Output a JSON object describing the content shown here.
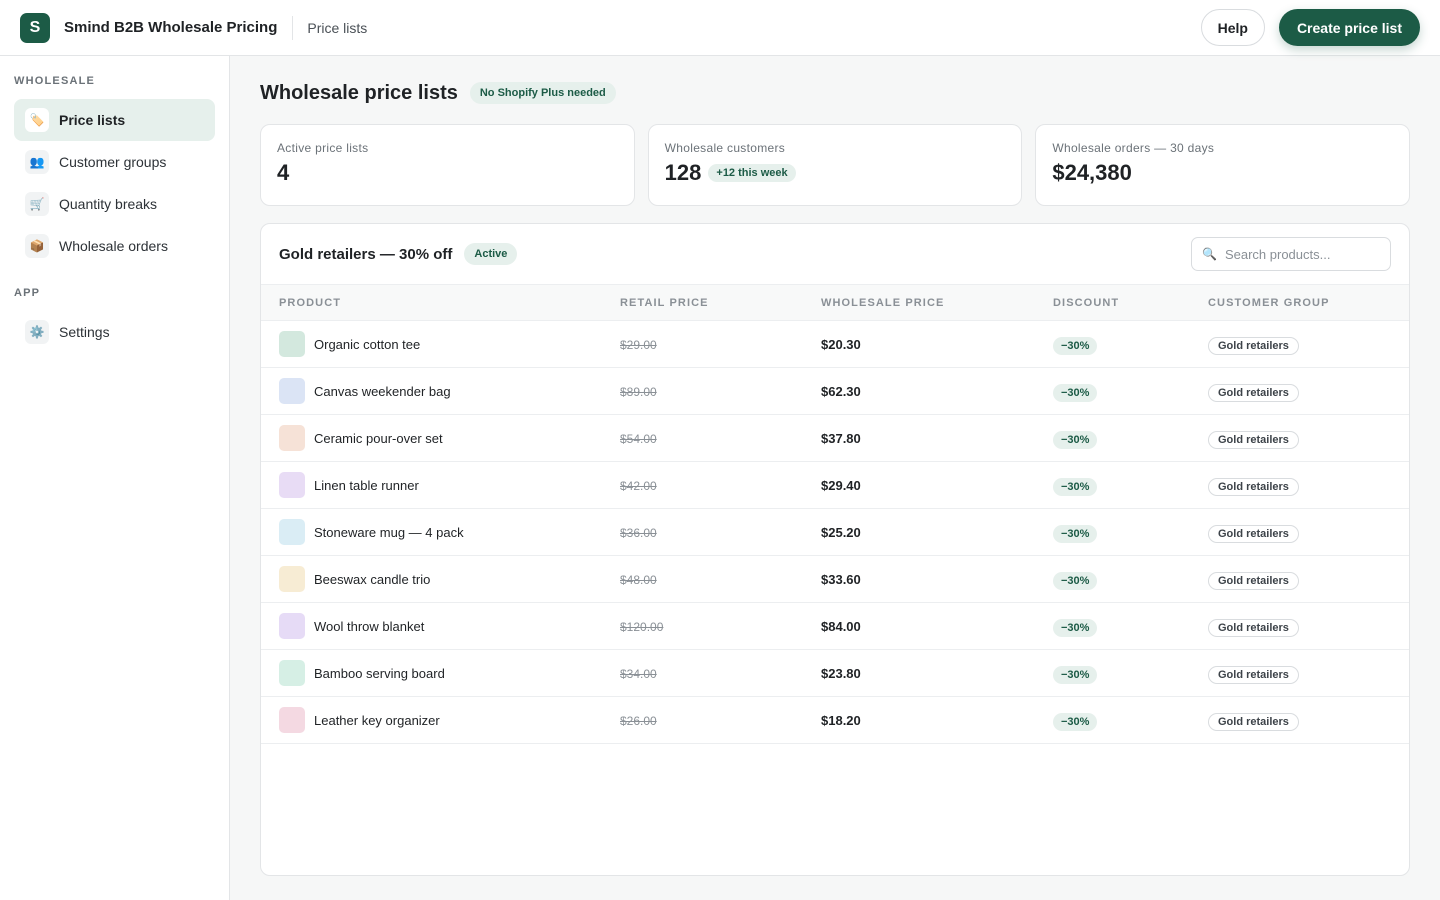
{
  "app": {
    "logo_letter": "S",
    "title": "Smind B2B Wholesale Pricing",
    "breadcrumb": "Price lists",
    "help_label": "Help",
    "create_label": "Create price list"
  },
  "sidebar": {
    "sections": [
      {
        "heading": "WHOLESALE",
        "items": [
          {
            "label": "Price lists",
            "icon": "🏷️",
            "icon_name": "tag-icon",
            "active": true
          },
          {
            "label": "Customer groups",
            "icon": "👥",
            "icon_name": "users-icon",
            "active": false
          },
          {
            "label": "Quantity breaks",
            "icon": "🛒",
            "icon_name": "cart-icon",
            "active": false
          },
          {
            "label": "Wholesale orders",
            "icon": "📦",
            "icon_name": "package-icon",
            "active": false
          }
        ]
      },
      {
        "heading": "APP",
        "items": [
          {
            "label": "Settings",
            "icon": "⚙️",
            "icon_name": "gear-icon",
            "active": false
          }
        ]
      }
    ]
  },
  "page": {
    "title": "Wholesale price lists",
    "badge": "No Shopify Plus needed"
  },
  "stats": [
    {
      "label": "Active price lists",
      "value": "4",
      "badge": ""
    },
    {
      "label": "Wholesale customers",
      "value": "128",
      "badge": "+12 this week"
    },
    {
      "label": "Wholesale orders — 30 days",
      "value": "$24,380",
      "badge": ""
    }
  ],
  "price_list": {
    "title": "Gold retailers — 30% off",
    "status": "Active",
    "search_placeholder": "Search products...",
    "search_icon": "🔍",
    "columns": [
      "PRODUCT",
      "RETAIL PRICE",
      "WHOLESALE PRICE",
      "DISCOUNT",
      "CUSTOMER GROUP"
    ],
    "rows": [
      {
        "product": "Organic cotton tee",
        "retail": "$29.00",
        "wholesale": "$20.30",
        "discount": "−30%",
        "group": "Gold retailers",
        "swatch": "#d3e8de"
      },
      {
        "product": "Canvas weekender bag",
        "retail": "$89.00",
        "wholesale": "$62.30",
        "discount": "−30%",
        "group": "Gold retailers",
        "swatch": "#dbe4f5"
      },
      {
        "product": "Ceramic pour-over set",
        "retail": "$54.00",
        "wholesale": "$37.80",
        "discount": "−30%",
        "group": "Gold retailers",
        "swatch": "#f6e2d7"
      },
      {
        "product": "Linen table runner",
        "retail": "$42.00",
        "wholesale": "$29.40",
        "discount": "−30%",
        "group": "Gold retailers",
        "swatch": "#e8dcf5"
      },
      {
        "product": "Stoneware mug — 4 pack",
        "retail": "$36.00",
        "wholesale": "$25.20",
        "discount": "−30%",
        "group": "Gold retailers",
        "swatch": "#daedf5"
      },
      {
        "product": "Beeswax candle trio",
        "retail": "$48.00",
        "wholesale": "$33.60",
        "discount": "−30%",
        "group": "Gold retailers",
        "swatch": "#f7ecd4"
      },
      {
        "product": "Wool throw blanket",
        "retail": "$120.00",
        "wholesale": "$84.00",
        "discount": "−30%",
        "group": "Gold retailers",
        "swatch": "#e6dbf6"
      },
      {
        "product": "Bamboo serving board",
        "retail": "$34.00",
        "wholesale": "$23.80",
        "discount": "−30%",
        "group": "Gold retailers",
        "swatch": "#d6efe5"
      },
      {
        "product": "Leather key organizer",
        "retail": "$26.00",
        "wholesale": "$18.20",
        "discount": "−30%",
        "group": "Gold retailers",
        "swatch": "#f4d9e2"
      }
    ]
  },
  "colors": {
    "brand": "#1c5b46",
    "brand_tint": "#e6f0ec"
  }
}
